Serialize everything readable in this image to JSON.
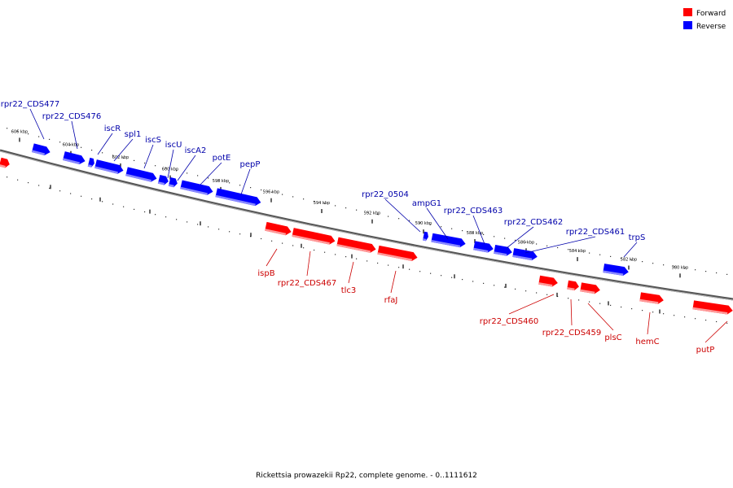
{
  "colors": {
    "forward": "#ff0000",
    "reverse": "#0000ff",
    "forward_label": "#cc0000",
    "reverse_label": "#0000aa"
  },
  "legend": {
    "forward": "Forward",
    "reverse": "Reverse"
  },
  "caption": "Rickettsia prowazekii Rp22, complete genome. - 0..1111612",
  "ticks": [
    "606 kbp",
    "604 kbp",
    "602 kbp",
    "600 kbp",
    "598 kbp",
    "596 kbp",
    "594 kbp",
    "592 kbp",
    "590 kbp",
    "588 kbp",
    "586 kbp",
    "584 kbp",
    "582 kbp",
    "580 kbp"
  ],
  "genes": [
    {
      "name": "rpr22_CDS477",
      "strand": "reverse"
    },
    {
      "name": "rpr22_CDS476",
      "strand": "reverse"
    },
    {
      "name": "iscR",
      "strand": "reverse"
    },
    {
      "name": "spl1",
      "strand": "reverse"
    },
    {
      "name": "iscS",
      "strand": "reverse"
    },
    {
      "name": "iscU",
      "strand": "reverse"
    },
    {
      "name": "iscA2",
      "strand": "reverse"
    },
    {
      "name": "potE",
      "strand": "reverse"
    },
    {
      "name": "pepP",
      "strand": "reverse"
    },
    {
      "name": "rpr22_0504",
      "strand": "reverse"
    },
    {
      "name": "ampG1",
      "strand": "reverse"
    },
    {
      "name": "rpr22_CDS463",
      "strand": "reverse"
    },
    {
      "name": "rpr22_CDS462",
      "strand": "reverse"
    },
    {
      "name": "rpr22_CDS461",
      "strand": "reverse"
    },
    {
      "name": "trpS",
      "strand": "reverse"
    },
    {
      "name": "ispB",
      "strand": "forward"
    },
    {
      "name": "rpr22_CDS467",
      "strand": "forward"
    },
    {
      "name": "tlc3",
      "strand": "forward"
    },
    {
      "name": "rfaJ",
      "strand": "forward"
    },
    {
      "name": "rpr22_CDS460",
      "strand": "forward"
    },
    {
      "name": "rpr22_CDS459",
      "strand": "forward"
    },
    {
      "name": "plsC",
      "strand": "forward"
    },
    {
      "name": "hemC",
      "strand": "forward"
    },
    {
      "name": "putP",
      "strand": "forward"
    }
  ]
}
